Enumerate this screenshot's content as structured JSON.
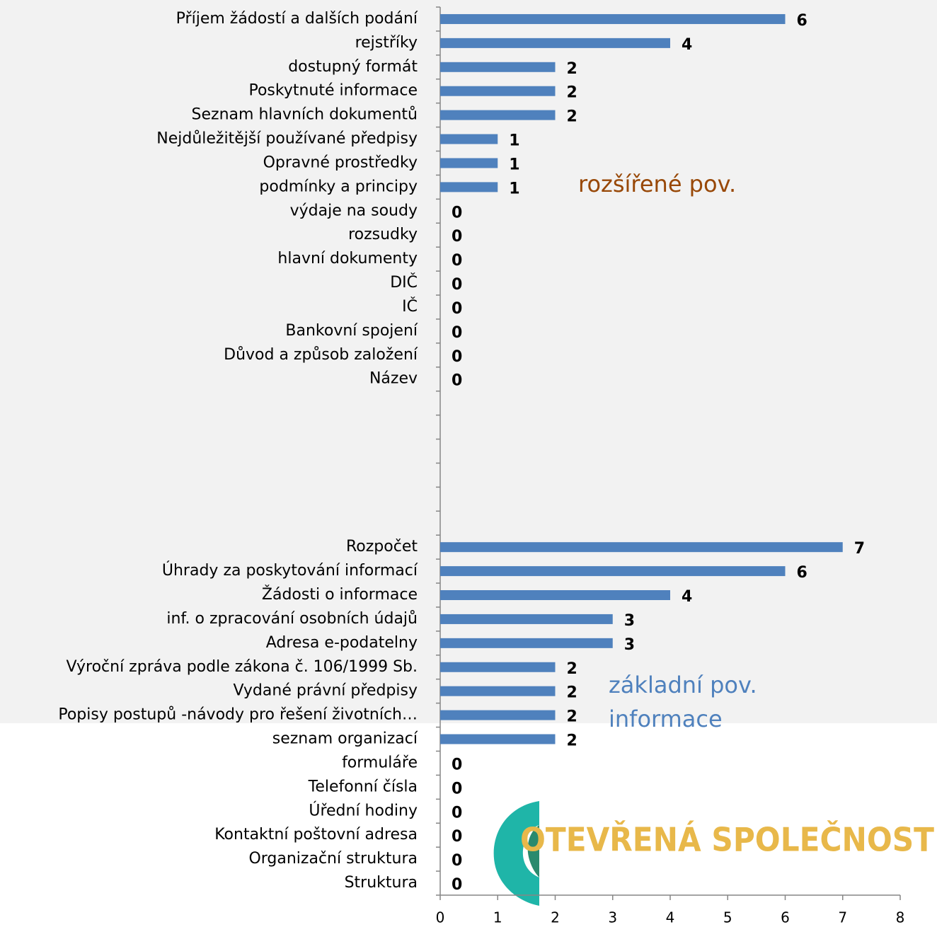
{
  "chart_data": {
    "type": "barh",
    "categories": [
      "Příjem žádostí a dalších podání",
      "rejstříky",
      "dostupný formát",
      "Poskytnuté informace",
      "Seznam hlavních dokumentů",
      "Nejdůležitější používané předpisy",
      "Opravné prostředky",
      "podmínky a principy",
      "výdaje na soudy",
      "rozsudky",
      "hlavní dokumenty",
      "DIČ",
      "IČ",
      "Bankovní spojení",
      "Důvod a způsob založení",
      "Název",
      null,
      null,
      null,
      null,
      null,
      null,
      "Rozpočet",
      "Úhrady za poskytování informací",
      "Žádosti o informace",
      "inf. o zpracování osobních údajů",
      "Adresa e-podatelny",
      "Výroční zpráva podle zákona č. 106/1999 Sb.",
      "Vydané právní předpisy",
      "Popisy postupů -návody pro řešení životních…",
      "seznam organizací",
      "formuláře",
      "Telefonní čísla",
      "Úřední hodiny",
      "Kontaktní poštovní adresa",
      "Organizační struktura",
      "Struktura"
    ],
    "values": [
      6,
      4,
      2,
      2,
      2,
      1,
      1,
      1,
      0,
      0,
      0,
      0,
      0,
      0,
      0,
      0,
      null,
      null,
      null,
      null,
      null,
      null,
      7,
      6,
      4,
      3,
      3,
      2,
      2,
      2,
      2,
      0,
      0,
      0,
      0,
      0,
      0
    ],
    "color": "#4f81bd",
    "xlim": [
      0,
      8
    ],
    "xticks": [
      0,
      1,
      2,
      3,
      4,
      5,
      6,
      7,
      8
    ],
    "annotations": [
      {
        "text": "rozšířené pov.",
        "color": "#984807"
      },
      {
        "text": "základní pov.",
        "color": "#4f81bd"
      },
      {
        "text": "informace",
        "color": "#4f81bd"
      }
    ]
  },
  "logo": {
    "text": "OTEVŘENÁ SPOLEČNOST"
  }
}
